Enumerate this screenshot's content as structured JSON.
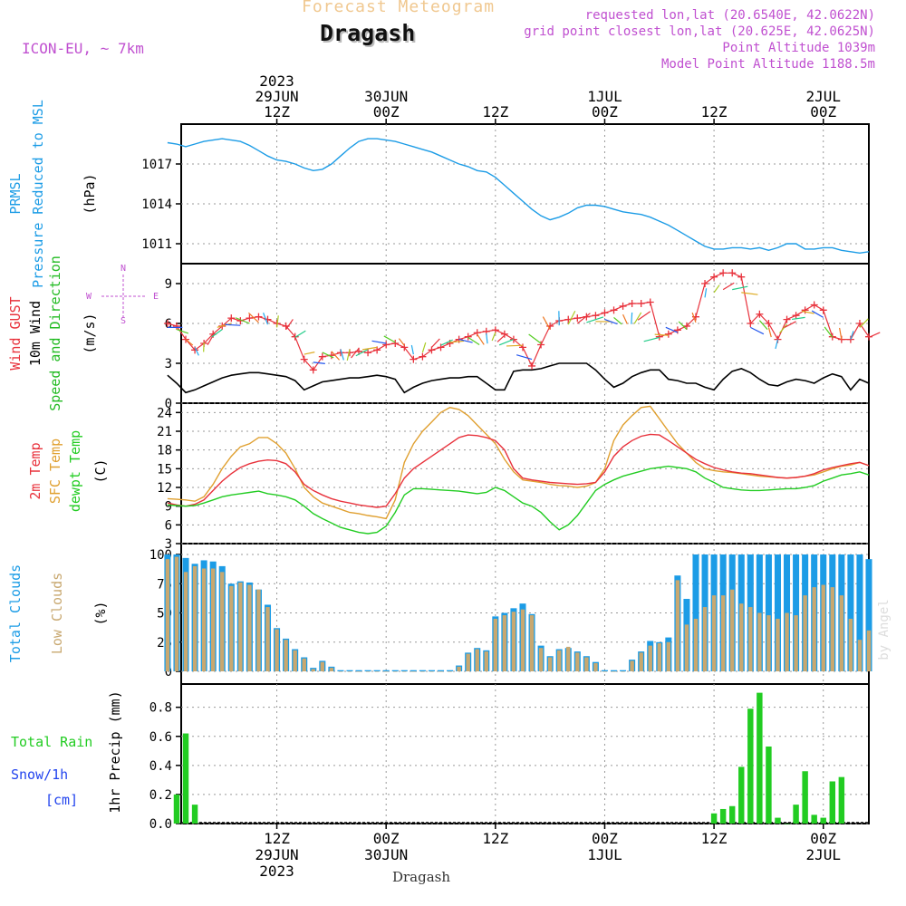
{
  "header": {
    "product": "Forecast Meteogram",
    "station": "Dragash",
    "model": "ICON-EU, ~ 7km",
    "requested": "requested lon,lat (20.6540E, 42.0622N)",
    "closest": "grid point closest lon,lat (20.625E, 42.0625N)",
    "point_alt": "Point Altitude 1039m",
    "model_alt": "Model Point Altitude 1188.5m"
  },
  "colors": {
    "pressure": "#1c9ce6",
    "gust": "#e8323c",
    "wind": "#000000",
    "windarrow": "#22bb22",
    "temp": "#e8323c",
    "sfc": "#e0a030",
    "dew": "#22cc22",
    "total_clouds": "#1c9ce6",
    "low_clouds": "#c8a870",
    "rain": "#22cc22",
    "snow": "#2244ee",
    "header": "#c050d0",
    "title_faint": "#f0c890"
  },
  "time_axis": {
    "top_ticks": [
      {
        "t": 12,
        "lines": [
          "2023",
          "29JUN",
          "12Z"
        ]
      },
      {
        "t": 24,
        "lines": [
          "30JUN",
          "00Z"
        ]
      },
      {
        "t": 36,
        "lines": [
          "12Z"
        ]
      },
      {
        "t": 48,
        "lines": [
          "1JUL",
          "00Z"
        ]
      },
      {
        "t": 60,
        "lines": [
          "12Z"
        ]
      },
      {
        "t": 72,
        "lines": [
          "2JUL",
          "00Z"
        ]
      }
    ],
    "bottom_ticks": [
      {
        "t": 12,
        "lines": [
          "12Z",
          "29JUN",
          "2023"
        ]
      },
      {
        "t": 24,
        "lines": [
          "00Z",
          "30JUN"
        ]
      },
      {
        "t": 36,
        "lines": [
          "12Z"
        ]
      },
      {
        "t": 48,
        "lines": [
          "00Z",
          "1JUL"
        ]
      },
      {
        "t": 60,
        "lines": [
          "12Z"
        ]
      },
      {
        "t": 72,
        "lines": [
          "00Z",
          "2JUL"
        ]
      }
    ],
    "footer": "Dragash",
    "range_hours": [
      0,
      77
    ]
  },
  "panels": {
    "pressure": {
      "labels": [
        "PRMSL",
        "Pressure Reduced to MSL"
      ],
      "unit": "(hPa)"
    },
    "wind": {
      "labels": [
        "Wind GUST",
        "10m Wind",
        "Speed and Direction"
      ],
      "unit": "(m/s)",
      "compass": {
        "n": "N",
        "s": "S",
        "w": "W",
        "e": "E"
      }
    },
    "temp": {
      "labels": [
        "2m Temp",
        "SFC Temp",
        "dewpt Temp"
      ],
      "unit": "(C)"
    },
    "clouds": {
      "labels": [
        "Total Clouds",
        "Low Clouds"
      ],
      "unit": "(%)",
      "watermark": "by Angel"
    },
    "precip": {
      "labels": [
        "Total  Rain",
        "Snow/1h",
        "[cm]"
      ],
      "ylabel": "1hr Precip (mm)"
    }
  },
  "chart_data": {
    "type": "line",
    "x_unit": "hours from 29JUN 00Z",
    "pressure": {
      "ylim": [
        1009.5,
        1020
      ],
      "ticks": [
        1011,
        1014,
        1017
      ],
      "x": [
        0,
        1,
        2,
        3,
        4,
        5,
        6,
        7,
        8,
        9,
        10,
        11,
        12,
        13,
        14,
        15,
        16,
        17,
        18,
        19,
        20,
        21,
        22,
        23,
        24,
        25,
        26,
        27,
        28,
        29,
        30,
        31,
        32,
        33,
        34,
        35,
        36,
        37,
        38,
        39,
        40,
        41,
        42,
        43,
        44,
        45,
        46,
        47,
        48,
        49,
        50,
        51,
        52,
        53,
        54,
        55,
        56,
        57,
        58,
        59,
        60,
        61,
        62,
        63,
        64,
        65,
        66,
        67,
        68,
        69,
        70,
        71,
        72,
        73,
        74,
        75,
        76,
        77
      ],
      "values": [
        1018.6,
        1018.5,
        1018.3,
        1018.5,
        1018.7,
        1018.8,
        1018.9,
        1018.8,
        1018.7,
        1018.4,
        1018.0,
        1017.6,
        1017.3,
        1017.2,
        1017.0,
        1016.7,
        1016.5,
        1016.6,
        1017.0,
        1017.6,
        1018.2,
        1018.7,
        1018.9,
        1018.9,
        1018.8,
        1018.7,
        1018.5,
        1018.3,
        1018.1,
        1017.9,
        1017.6,
        1017.3,
        1017.0,
        1016.8,
        1016.5,
        1016.4,
        1016.0,
        1015.4,
        1014.8,
        1014.2,
        1013.6,
        1013.1,
        1012.8,
        1013.0,
        1013.3,
        1013.7,
        1013.9,
        1013.9,
        1013.8,
        1013.6,
        1013.4,
        1013.3,
        1013.2,
        1013.0,
        1012.7,
        1012.4,
        1012.0,
        1011.6,
        1011.2,
        1010.8,
        1010.6,
        1010.6,
        1010.7,
        1010.7,
        1010.6,
        1010.7,
        1010.5,
        1010.7,
        1011.0,
        1011.0,
        1010.6,
        1010.6,
        1010.7,
        1010.7,
        1010.5,
        1010.4,
        1010.3,
        1010.4
      ]
    },
    "wind": {
      "ylim": [
        0,
        10.5
      ],
      "ticks": [
        0,
        3,
        6,
        9
      ],
      "x": [
        0,
        1,
        2,
        3,
        4,
        5,
        6,
        7,
        8,
        9,
        10,
        11,
        12,
        13,
        14,
        15,
        16,
        17,
        18,
        19,
        20,
        21,
        22,
        23,
        24,
        25,
        26,
        27,
        28,
        29,
        30,
        31,
        32,
        33,
        34,
        35,
        36,
        37,
        38,
        39,
        40,
        41,
        42,
        43,
        44,
        45,
        46,
        47,
        48,
        49,
        50,
        51,
        52,
        53,
        54,
        55,
        56,
        57,
        58,
        59,
        60,
        61,
        62,
        63,
        64,
        65,
        66,
        67,
        68,
        69,
        70,
        71,
        72,
        73,
        74,
        75,
        76,
        77
      ],
      "gust": [
        6.0,
        5.8,
        4.8,
        4.0,
        4.5,
        5.2,
        5.8,
        6.4,
        6.2,
        6.4,
        6.5,
        6.3,
        6.0,
        5.8,
        5.0,
        3.3,
        2.5,
        3.5,
        3.6,
        3.8,
        3.8,
        3.9,
        3.8,
        4.0,
        4.4,
        4.5,
        4.2,
        3.3,
        3.5,
        4.0,
        4.2,
        4.5,
        4.8,
        5.0,
        5.3,
        5.4,
        5.5,
        5.2,
        4.8,
        4.2,
        2.8,
        4.4,
        5.8,
        6.2,
        6.3,
        6.4,
        6.5,
        6.6,
        6.8,
        7.0,
        7.3,
        7.5,
        7.5,
        7.6,
        5.0,
        5.2,
        5.5,
        5.8,
        6.5,
        9.0,
        9.5,
        9.8,
        9.8,
        9.5,
        6.0,
        6.7,
        6.0,
        4.8,
        6.3,
        6.6,
        7.0,
        7.4,
        7.0,
        5.0,
        4.8,
        4.8,
        6.0,
        5.0
      ],
      "speed": [
        2.1,
        1.5,
        0.8,
        1.0,
        1.3,
        1.6,
        1.9,
        2.1,
        2.2,
        2.3,
        2.3,
        2.2,
        2.1,
        2.0,
        1.7,
        1.0,
        1.3,
        1.6,
        1.7,
        1.8,
        1.9,
        1.9,
        2.0,
        2.1,
        2.0,
        1.8,
        0.8,
        1.2,
        1.5,
        1.7,
        1.8,
        1.9,
        1.9,
        2.0,
        2.0,
        1.5,
        1.0,
        1.0,
        2.4,
        2.5,
        2.5,
        2.6,
        2.8,
        3.0,
        3.0,
        3.0,
        3.0,
        2.5,
        1.8,
        1.2,
        1.5,
        2.0,
        2.3,
        2.5,
        2.5,
        1.8,
        1.7,
        1.5,
        1.5,
        1.2,
        1.0,
        1.8,
        2.4,
        2.6,
        2.3,
        1.8,
        1.4,
        1.3,
        1.6,
        1.8,
        1.7,
        1.5,
        1.9,
        2.2,
        2.0,
        1.0,
        1.8,
        1.5
      ]
    },
    "temperature": {
      "ylim": [
        3,
        25.5
      ],
      "ticks": [
        3,
        6,
        9,
        12,
        15,
        18,
        21,
        24
      ],
      "x": [
        0,
        1,
        2,
        3,
        4,
        5,
        6,
        7,
        8,
        9,
        10,
        11,
        12,
        13,
        14,
        15,
        16,
        17,
        18,
        19,
        20,
        21,
        22,
        23,
        24,
        25,
        26,
        27,
        28,
        29,
        30,
        31,
        32,
        33,
        34,
        35,
        36,
        37,
        38,
        39,
        40,
        41,
        42,
        43,
        44,
        45,
        46,
        47,
        48,
        49,
        50,
        51,
        52,
        53,
        54,
        55,
        56,
        57,
        58,
        59,
        60,
        61,
        62,
        63,
        64,
        65,
        66,
        67,
        68,
        69,
        70,
        71,
        72,
        73,
        74,
        75,
        76,
        77
      ],
      "t2m": [
        9.5,
        9.2,
        9.0,
        9.3,
        10.0,
        11.5,
        13.0,
        14.2,
        15.2,
        15.8,
        16.2,
        16.4,
        16.3,
        15.8,
        14.5,
        12.5,
        11.5,
        10.8,
        10.2,
        9.8,
        9.5,
        9.2,
        9.0,
        8.8,
        9.0,
        11.0,
        13.5,
        15.0,
        16.0,
        17.0,
        18.0,
        19.0,
        20.0,
        20.4,
        20.3,
        20.0,
        19.5,
        18.0,
        15.0,
        13.5,
        13.2,
        13.0,
        12.8,
        12.7,
        12.6,
        12.5,
        12.6,
        12.8,
        14.5,
        17.0,
        18.5,
        19.5,
        20.2,
        20.5,
        20.4,
        19.5,
        18.5,
        17.5,
        16.5,
        15.8,
        15.2,
        14.8,
        14.5,
        14.3,
        14.2,
        14.0,
        13.8,
        13.6,
        13.5,
        13.6,
        13.8,
        14.2,
        14.8,
        15.2,
        15.5,
        15.8,
        16.0,
        15.5
      ],
      "sfc": [
        10.2,
        10.1,
        10.0,
        9.8,
        10.5,
        12.5,
        15.0,
        17.0,
        18.5,
        19.0,
        20.0,
        20.0,
        19.0,
        17.5,
        15.0,
        12.0,
        10.5,
        9.5,
        9.0,
        8.5,
        8.0,
        7.8,
        7.5,
        7.3,
        7.0,
        10.0,
        16.0,
        19.0,
        21.0,
        22.5,
        24.0,
        24.8,
        24.5,
        23.5,
        22.0,
        20.5,
        19.0,
        16.5,
        14.5,
        13.2,
        13.0,
        12.8,
        12.5,
        12.3,
        12.2,
        12.0,
        12.2,
        12.8,
        15.0,
        19.5,
        22.0,
        23.5,
        24.8,
        25.0,
        23.0,
        21.0,
        19.0,
        17.5,
        16.0,
        15.0,
        14.7,
        14.5,
        14.4,
        14.2,
        14.0,
        13.8,
        13.7,
        13.6,
        13.5,
        13.6,
        13.8,
        14.0,
        14.5,
        15.0,
        15.4,
        15.6,
        16.0,
        15.5
      ],
      "dew": [
        9.2,
        9.1,
        9.0,
        9.1,
        9.5,
        10.0,
        10.5,
        10.8,
        11.0,
        11.2,
        11.4,
        11.0,
        10.8,
        10.5,
        10.0,
        9.0,
        7.8,
        7.0,
        6.3,
        5.6,
        5.2,
        4.8,
        4.6,
        4.8,
        5.8,
        8.0,
        10.8,
        11.8,
        11.8,
        11.7,
        11.6,
        11.5,
        11.4,
        11.2,
        11.0,
        11.2,
        12.0,
        11.5,
        10.5,
        9.5,
        9.0,
        8.0,
        6.5,
        5.2,
        6.0,
        7.5,
        9.5,
        11.5,
        12.5,
        13.2,
        13.8,
        14.2,
        14.6,
        15.0,
        15.2,
        15.4,
        15.2,
        15.0,
        14.5,
        13.5,
        12.8,
        12.0,
        11.8,
        11.6,
        11.5,
        11.5,
        11.6,
        11.7,
        11.8,
        11.8,
        12.0,
        12.3,
        13.0,
        13.5,
        14.0,
        14.2,
        14.5,
        14.0
      ]
    },
    "clouds": {
      "ylim": [
        0,
        100
      ],
      "ticks": [
        0,
        25,
        50,
        75,
        100
      ],
      "x": [
        0,
        1,
        2,
        3,
        4,
        5,
        6,
        7,
        8,
        9,
        10,
        11,
        12,
        13,
        14,
        15,
        16,
        17,
        18,
        19,
        20,
        21,
        22,
        23,
        24,
        25,
        26,
        27,
        28,
        29,
        30,
        31,
        32,
        33,
        34,
        35,
        36,
        37,
        38,
        39,
        40,
        41,
        42,
        43,
        44,
        45,
        46,
        47,
        48,
        49,
        50,
        51,
        52,
        53,
        54,
        55,
        56,
        57,
        58,
        59,
        60,
        61,
        62,
        63,
        64,
        65,
        66,
        67,
        68,
        69,
        70,
        71,
        72,
        73,
        74,
        75,
        76,
        77
      ],
      "total": [
        100,
        100,
        97,
        92,
        95,
        94,
        90,
        75,
        77,
        76,
        70,
        57,
        37,
        28,
        19,
        12,
        3,
        9,
        4,
        1,
        1,
        1,
        1,
        1,
        1,
        1,
        1,
        1,
        1,
        1,
        1,
        1,
        5,
        16,
        20,
        18,
        47,
        50,
        54,
        58,
        49,
        22,
        13,
        19,
        20,
        17,
        13,
        8,
        1,
        1,
        1,
        10,
        17,
        26,
        25,
        29,
        82,
        62,
        100,
        100,
        100,
        100,
        100,
        100,
        100,
        100,
        100,
        100,
        100,
        100,
        100,
        100,
        100,
        100,
        100,
        100,
        100,
        96
      ],
      "low": [
        96,
        98,
        85,
        90,
        88,
        88,
        85,
        73,
        76,
        74,
        70,
        55,
        36,
        27,
        18,
        11,
        2,
        8,
        3,
        0,
        0,
        0,
        0,
        0,
        0,
        0,
        0,
        0,
        0,
        0,
        0,
        0,
        4,
        15,
        19,
        17,
        45,
        48,
        51,
        53,
        48,
        20,
        12,
        18,
        21,
        16,
        12,
        7,
        0,
        0,
        0,
        9,
        16,
        22,
        24,
        25,
        78,
        40,
        45,
        55,
        65,
        65,
        70,
        58,
        55,
        50,
        48,
        45,
        50,
        48,
        65,
        72,
        74,
        72,
        65,
        45,
        27,
        35
      ]
    },
    "precip": {
      "ylim": [
        0,
        0.96
      ],
      "ticks": [
        0,
        0.2,
        0.4,
        0.6,
        0.8
      ],
      "x": [
        1,
        2,
        3,
        60,
        61,
        62,
        63,
        64,
        65,
        66,
        67,
        68,
        69,
        70,
        71,
        72,
        73,
        74
      ],
      "rain": [
        0.2,
        0.62,
        0.13,
        0.07,
        0.1,
        0.12,
        0.39,
        0.79,
        0.9,
        0.53,
        0.04,
        0,
        0.13,
        0.36,
        0.06,
        0.04,
        0.29,
        0.32
      ],
      "snow": []
    }
  }
}
